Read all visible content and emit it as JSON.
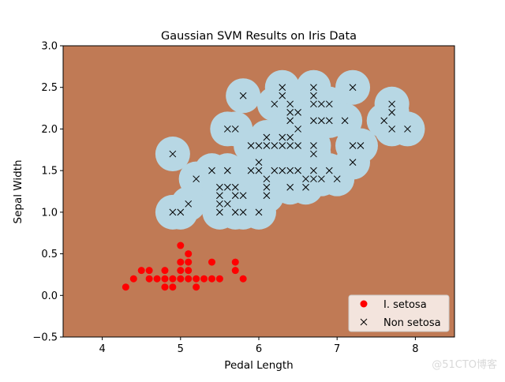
{
  "chart_data": {
    "type": "scatter",
    "title": "Gaussian SVM Results on Iris Data",
    "xlabel": "Pedal Length",
    "ylabel": "Sepal Width",
    "xlim": [
      3.5,
      8.5
    ],
    "ylim": [
      -0.5,
      3.0
    ],
    "xticks": [
      4,
      5,
      6,
      7,
      8
    ],
    "xtick_labels": [
      "4",
      "5",
      "6",
      "7",
      "8"
    ],
    "yticks": [
      -0.5,
      0.0,
      0.5,
      1.0,
      1.5,
      2.0,
      2.5,
      3.0
    ],
    "ytick_labels": [
      "−0.5",
      "0.0",
      "0.5",
      "1.0",
      "1.5",
      "2.0",
      "2.5",
      "3.0"
    ],
    "grid": false,
    "legend_position": "lower-right",
    "background_color": "#c07a55",
    "region_color": "#b7d7e4",
    "series": [
      {
        "name": "I. setosa",
        "marker": "circle",
        "color": "#ff0000",
        "points": [
          [
            4.3,
            0.1
          ],
          [
            4.4,
            0.2
          ],
          [
            4.5,
            0.3
          ],
          [
            4.6,
            0.2
          ],
          [
            4.6,
            0.3
          ],
          [
            4.7,
            0.2
          ],
          [
            4.8,
            0.1
          ],
          [
            4.8,
            0.2
          ],
          [
            4.8,
            0.3
          ],
          [
            4.9,
            0.1
          ],
          [
            4.9,
            0.2
          ],
          [
            5.0,
            0.2
          ],
          [
            5.0,
            0.3
          ],
          [
            5.0,
            0.4
          ],
          [
            5.0,
            0.6
          ],
          [
            5.1,
            0.2
          ],
          [
            5.1,
            0.3
          ],
          [
            5.1,
            0.4
          ],
          [
            5.1,
            0.5
          ],
          [
            5.2,
            0.1
          ],
          [
            5.2,
            0.2
          ],
          [
            5.3,
            0.2
          ],
          [
            5.4,
            0.2
          ],
          [
            5.4,
            0.4
          ],
          [
            5.5,
            0.2
          ],
          [
            5.7,
            0.3
          ],
          [
            5.7,
            0.4
          ],
          [
            5.8,
            0.2
          ]
        ]
      },
      {
        "name": "Non setosa",
        "marker": "x",
        "color": "#000000",
        "points": [
          [
            4.9,
            1.0
          ],
          [
            4.9,
            1.7
          ],
          [
            5.0,
            1.0
          ],
          [
            5.1,
            1.1
          ],
          [
            5.2,
            1.4
          ],
          [
            5.4,
            1.5
          ],
          [
            5.5,
            1.0
          ],
          [
            5.5,
            1.1
          ],
          [
            5.5,
            1.2
          ],
          [
            5.5,
            1.3
          ],
          [
            5.6,
            1.1
          ],
          [
            5.6,
            1.3
          ],
          [
            5.6,
            1.5
          ],
          [
            5.6,
            2.0
          ],
          [
            5.7,
            1.0
          ],
          [
            5.7,
            1.2
          ],
          [
            5.7,
            1.3
          ],
          [
            5.7,
            2.0
          ],
          [
            5.8,
            1.0
          ],
          [
            5.8,
            1.2
          ],
          [
            5.8,
            2.4
          ],
          [
            5.9,
            1.5
          ],
          [
            5.9,
            1.8
          ],
          [
            6.0,
            1.0
          ],
          [
            6.0,
            1.5
          ],
          [
            6.0,
            1.6
          ],
          [
            6.0,
            1.8
          ],
          [
            6.1,
            1.2
          ],
          [
            6.1,
            1.3
          ],
          [
            6.1,
            1.4
          ],
          [
            6.1,
            1.8
          ],
          [
            6.1,
            1.9
          ],
          [
            6.2,
            1.5
          ],
          [
            6.2,
            1.8
          ],
          [
            6.2,
            2.3
          ],
          [
            6.3,
            1.5
          ],
          [
            6.3,
            1.8
          ],
          [
            6.3,
            1.9
          ],
          [
            6.3,
            2.4
          ],
          [
            6.3,
            2.5
          ],
          [
            6.4,
            1.3
          ],
          [
            6.4,
            1.5
          ],
          [
            6.4,
            1.8
          ],
          [
            6.4,
            1.9
          ],
          [
            6.4,
            2.1
          ],
          [
            6.4,
            2.2
          ],
          [
            6.4,
            2.3
          ],
          [
            6.5,
            1.5
          ],
          [
            6.5,
            1.8
          ],
          [
            6.5,
            2.0
          ],
          [
            6.5,
            2.2
          ],
          [
            6.6,
            1.3
          ],
          [
            6.6,
            1.4
          ],
          [
            6.7,
            1.4
          ],
          [
            6.7,
            1.5
          ],
          [
            6.7,
            1.7
          ],
          [
            6.7,
            1.8
          ],
          [
            6.7,
            2.1
          ],
          [
            6.7,
            2.3
          ],
          [
            6.7,
            2.4
          ],
          [
            6.7,
            2.5
          ],
          [
            6.8,
            1.4
          ],
          [
            6.8,
            2.1
          ],
          [
            6.8,
            2.3
          ],
          [
            6.9,
            1.5
          ],
          [
            6.9,
            2.1
          ],
          [
            6.9,
            2.3
          ],
          [
            7.0,
            1.4
          ],
          [
            7.1,
            2.1
          ],
          [
            7.2,
            1.6
          ],
          [
            7.2,
            1.8
          ],
          [
            7.2,
            2.5
          ],
          [
            7.3,
            1.8
          ],
          [
            7.6,
            2.1
          ],
          [
            7.7,
            2.0
          ],
          [
            7.7,
            2.2
          ],
          [
            7.7,
            2.3
          ],
          [
            7.9,
            2.0
          ]
        ]
      }
    ]
  },
  "watermark": "@51CTO博客"
}
